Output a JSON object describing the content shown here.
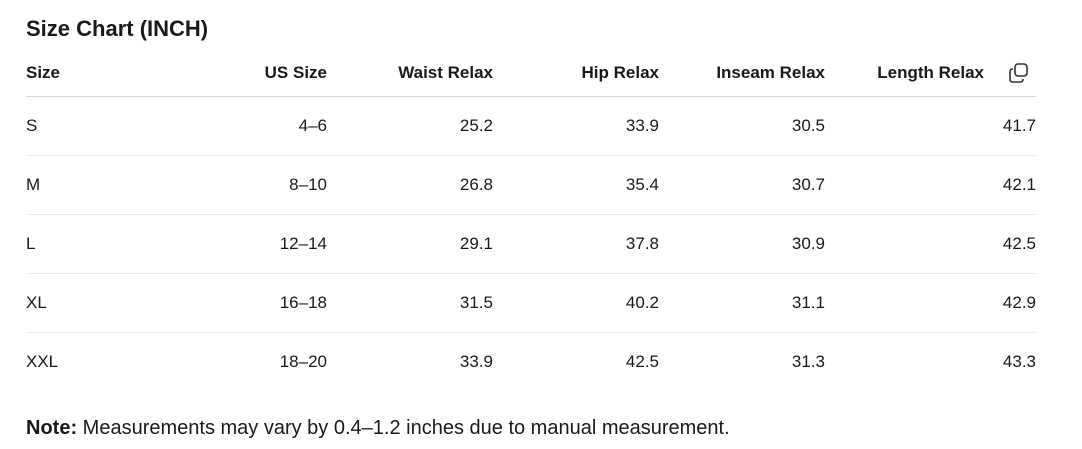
{
  "title": "Size Chart (INCH)",
  "table": {
    "headers": [
      "Size",
      "US Size",
      "Waist Relax",
      "Hip Relax",
      "Inseam Relax",
      "Length Relax"
    ],
    "rows": [
      [
        "S",
        "4–6",
        25.2,
        33.9,
        30.5,
        41.7
      ],
      [
        "M",
        "8–10",
        26.8,
        35.4,
        30.7,
        42.1
      ],
      [
        "L",
        "12–14",
        29.1,
        37.8,
        30.9,
        42.5
      ],
      [
        "XL",
        "16–18",
        31.5,
        40.2,
        31.1,
        42.9
      ],
      [
        "XXL",
        "18–20",
        33.9,
        42.5,
        31.3,
        43.3
      ]
    ]
  },
  "note": {
    "label": "Note:",
    "text": "Measurements may vary by 0.4–1.2 inches due to manual measurement."
  }
}
